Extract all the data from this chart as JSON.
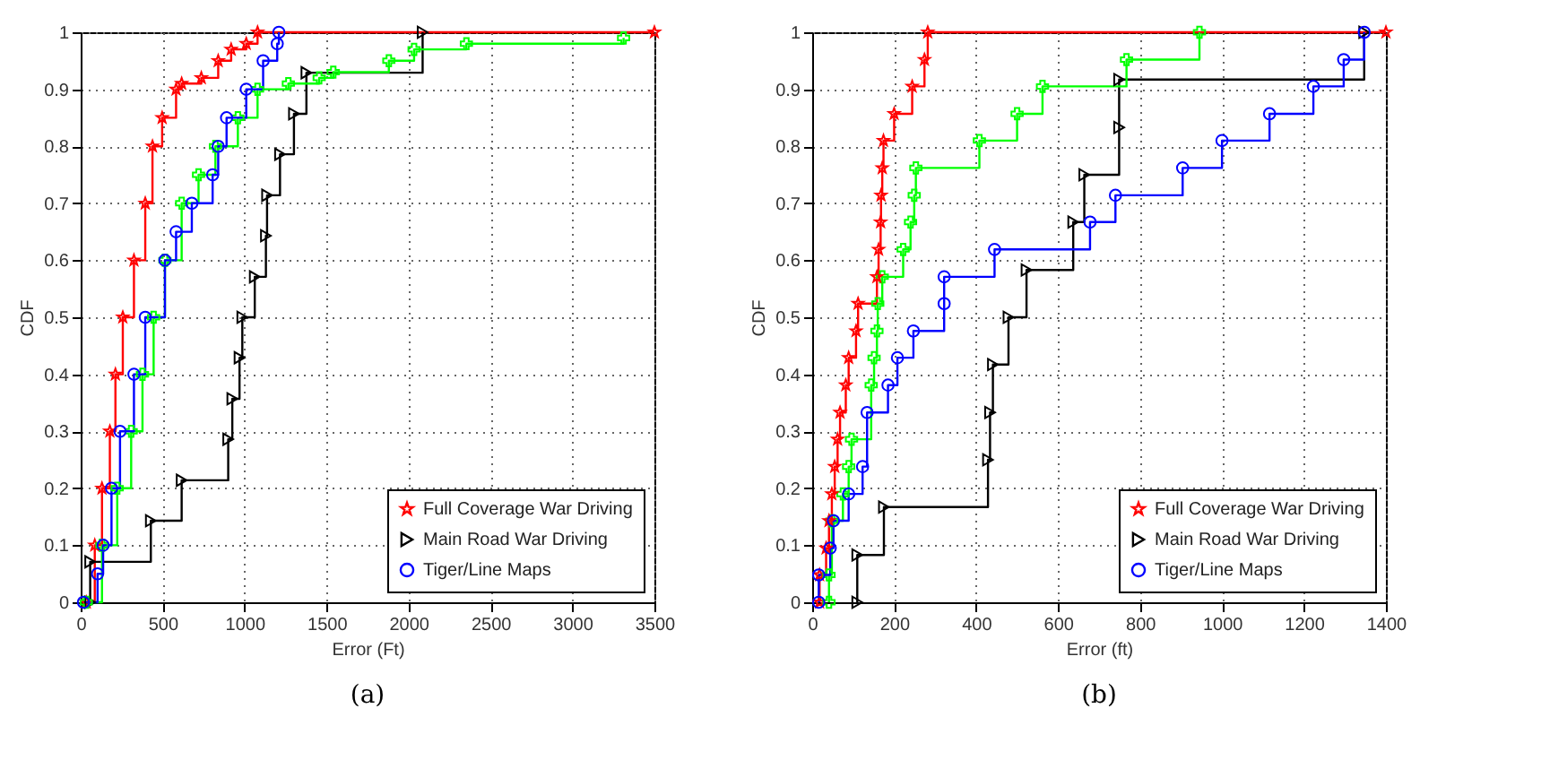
{
  "chart_data": [
    {
      "type": "step",
      "xlabel": "Error (Ft)",
      "ylabel": "CDF",
      "annotations": [
        "(a)"
      ],
      "xlim": [
        0,
        3500
      ],
      "ylim": [
        0,
        1
      ],
      "xticks": [
        0,
        500,
        1000,
        1500,
        2000,
        2500,
        3000,
        3500
      ],
      "yticks": [
        0,
        0.1,
        0.2,
        0.3,
        0.4,
        0.5,
        0.6,
        0.7,
        0.8,
        0.9,
        1
      ],
      "grid": true,
      "legend": "bottom right",
      "line_style": "solid",
      "series": [
        {
          "name": "Full Coverage War Driving",
          "color": "#ff0000",
          "marker": "star",
          "x": [
            34,
            86,
            130,
            178,
            212,
            257,
            325,
            394,
            438,
            497,
            582,
            616,
            736,
            839,
            918,
            1010,
            1079,
            3500
          ],
          "values": [
            0,
            0.1,
            0.2,
            0.3,
            0.4,
            0.5,
            0.6,
            0.7,
            0.8,
            0.85,
            0.9,
            0.91,
            0.92,
            0.95,
            0.97,
            0.98,
            1,
            1
          ]
        },
        {
          "name": "Main Road War Driving",
          "color": "#000000",
          "marker": "triangle",
          "x": [
            58,
            58,
            428,
            616,
            900,
            925,
            969,
            986,
            1062,
            1130,
            1137,
            1216,
            1301,
            1377,
            2086
          ],
          "values": [
            0,
            0.071,
            0.143,
            0.214,
            0.286,
            0.357,
            0.429,
            0.5,
            0.571,
            0.643,
            0.714,
            0.786,
            0.857,
            0.929,
            1
          ]
        },
        {
          "color": "#00ff00",
          "marker": "cross",
          "x": [
            34,
            130,
            223,
            308,
            377,
            445,
            514,
            616,
            719,
            822,
            959,
            1079,
            1267,
            1455,
            1541,
            1880,
            2034,
            2353,
            3312
          ],
          "values": [
            0,
            0.1,
            0.2,
            0.3,
            0.4,
            0.5,
            0.6,
            0.7,
            0.75,
            0.8,
            0.85,
            0.9,
            0.91,
            0.92,
            0.93,
            0.95,
            0.97,
            0.98,
            0.99
          ]
        },
        {
          "name": "Tiger/Line Maps",
          "color": "#0000ff",
          "marker": "circle",
          "x": [
            17,
            103,
            137,
            188,
            240,
            325,
            394,
            514,
            582,
            678,
            805,
            839,
            890,
            1010,
            1113,
            1199,
            1209
          ],
          "values": [
            0,
            0.05,
            0.1,
            0.2,
            0.3,
            0.4,
            0.5,
            0.6,
            0.65,
            0.7,
            0.75,
            0.8,
            0.85,
            0.9,
            0.95,
            0.98,
            1
          ]
        }
      ]
    },
    {
      "type": "step",
      "xlabel": "Error (ft)",
      "ylabel": "CDF",
      "annotations": [
        "(b)"
      ],
      "xlim": [
        0,
        1400
      ],
      "ylim": [
        0,
        1
      ],
      "xticks": [
        0,
        200,
        400,
        600,
        800,
        1000,
        1200,
        1400
      ],
      "yticks": [
        0,
        0.1,
        0.2,
        0.3,
        0.4,
        0.5,
        0.6,
        0.7,
        0.8,
        0.9,
        1
      ],
      "grid": true,
      "legend": "bottom right",
      "line_style": "solid",
      "series": [
        {
          "name": "Full Coverage War Driving",
          "color": "#ff0000",
          "marker": "star",
          "x": [
            18,
            18,
            34,
            41,
            48,
            55,
            62,
            68,
            82,
            89,
            107,
            112,
            158,
            162,
            167,
            168,
            171,
            174,
            200,
            244,
            274,
            282,
            1400
          ],
          "values": [
            0,
            0.048,
            0.095,
            0.143,
            0.19,
            0.238,
            0.286,
            0.333,
            0.381,
            0.429,
            0.476,
            0.524,
            0.571,
            0.619,
            0.667,
            0.714,
            0.762,
            0.81,
            0.857,
            0.905,
            0.952,
            1,
            1
          ]
        },
        {
          "name": "Main Road War Driving",
          "color": "#000000",
          "marker": "triangle",
          "x": [
            110,
            110,
            175,
            429,
            434,
            441,
            479,
            523,
            637,
            664,
            749,
            749,
            1347
          ],
          "values": [
            0,
            0.083,
            0.167,
            0.25,
            0.333,
            0.417,
            0.5,
            0.583,
            0.667,
            0.75,
            0.833,
            0.917,
            1
          ]
        },
        {
          "color": "#00ff00",
          "marker": "cross",
          "x": [
            41,
            41,
            48,
            75,
            89,
            96,
            144,
            151,
            158,
            160,
            171,
            222,
            240,
            249,
            253,
            408,
            500,
            562,
            767,
            945
          ],
          "values": [
            0,
            0.048,
            0.143,
            0.19,
            0.238,
            0.286,
            0.381,
            0.429,
            0.476,
            0.524,
            0.571,
            0.619,
            0.667,
            0.714,
            0.762,
            0.81,
            0.857,
            0.905,
            0.952,
            1
          ]
        },
        {
          "name": "Tiger/Line Maps",
          "color": "#0000ff",
          "marker": "circle",
          "x": [
            16,
            16,
            44,
            52,
            89,
            123,
            134,
            185,
            208,
            247,
            322,
            322,
            445,
            678,
            740,
            904,
            1000,
            1116,
            1223,
            1297,
            1347
          ],
          "values": [
            0,
            0.048,
            0.095,
            0.143,
            0.19,
            0.238,
            0.333,
            0.381,
            0.429,
            0.476,
            0.524,
            0.571,
            0.619,
            0.667,
            0.714,
            0.762,
            0.81,
            0.857,
            0.905,
            0.952,
            1
          ]
        }
      ]
    }
  ]
}
